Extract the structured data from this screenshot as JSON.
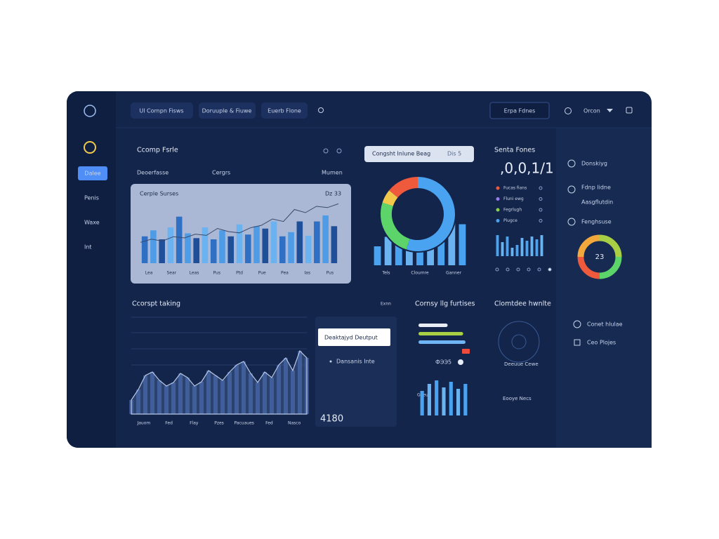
{
  "sidebar": {
    "items": [
      "Dalee",
      "Penis",
      "Waxe",
      "Int"
    ]
  },
  "topbar": {
    "tabs": [
      "Ul Cornpn Fisws",
      "Doruuple & Fiuwe",
      "Euerb Flone"
    ],
    "button": "Erpa Fdnes",
    "user": "Orcon"
  },
  "overview": {
    "title": "Ccomp Fsrle",
    "filters": [
      "Deoerfasse",
      "Cergrs",
      "Mumen"
    ],
    "chart": {
      "title": "Cerple Surses",
      "badge": "Dz 33",
      "bars": [
        45,
        55,
        40,
        60,
        78,
        50,
        42,
        60,
        40,
        55,
        45,
        65,
        48,
        62,
        58,
        70,
        45,
        52,
        70,
        46,
        70,
        80,
        62
      ],
      "line": [
        33,
        38,
        35,
        42,
        40,
        46,
        44,
        55,
        50,
        48,
        56,
        60,
        70,
        66,
        85,
        80,
        90,
        88,
        94
      ],
      "labels": [
        "Lea",
        "Sear",
        "Leas",
        "Pus",
        "Ptd",
        "Pue",
        "Pea",
        "Ias",
        "Pus"
      ]
    }
  },
  "donut_card": {
    "title": "Congsht Inlune Beag",
    "badge": "Dis 5",
    "segments": [
      {
        "value": 55,
        "color": "#4aa3f0"
      },
      {
        "value": 25,
        "color": "#5cd46a"
      },
      {
        "value": 6,
        "color": "#f2c84b"
      },
      {
        "value": 14,
        "color": "#ef5a3c"
      }
    ],
    "bars": [
      30,
      45,
      55,
      50,
      40,
      65,
      62,
      70,
      65
    ],
    "labels": [
      "Tels",
      "Cloumre",
      "Ganner"
    ]
  },
  "stats": {
    "title": "Senta Fones",
    "value": ",0,0,1/1",
    "legend": [
      {
        "name": "Fucas fians",
        "color": "#ef5a3c"
      },
      {
        "name": "Fluni ewg",
        "color": "#9b7cf0"
      },
      {
        "name": "Fegrlugh",
        "color": "#8ad04a"
      },
      {
        "name": "Piugce",
        "color": "#4aa3f0"
      }
    ],
    "bars": [
      30,
      20,
      28,
      12,
      16,
      26,
      22,
      28,
      24,
      30
    ]
  },
  "side": {
    "items": [
      "Donskiyg",
      "Fdnp lidne",
      "Aasgflutdin",
      "Fenghsuse"
    ],
    "gauge": "23",
    "links": [
      "Conet hlulae",
      "Ceo Plojes"
    ]
  },
  "trend": {
    "title": "Ccorspt taking",
    "action": "Exnn",
    "values": [
      20,
      35,
      55,
      60,
      48,
      40,
      45,
      58,
      52,
      40,
      46,
      62,
      55,
      48,
      60,
      70,
      75,
      58,
      45,
      60,
      52,
      70,
      80,
      62,
      90,
      80
    ],
    "labels": [
      "Jauom",
      "Fed",
      "Flay",
      "Pzes",
      "Pacuaues",
      "Fed",
      "Nasco"
    ]
  },
  "output": {
    "button": "Deaktajyd Deutput",
    "item": "Dansanis Inte",
    "value": "4180"
  },
  "features": {
    "title": "Cornsy llg furtises",
    "progress": [
      {
        "value": 62,
        "color": "#e8edf6"
      },
      {
        "value": 95,
        "color": "#a9cf45"
      },
      {
        "value": 100,
        "color": "#6fb4f5"
      }
    ],
    "value": "ФЭЭ5",
    "bars": [
      35,
      45,
      50,
      40,
      48,
      38,
      45
    ],
    "label": "Geeu"
  },
  "health": {
    "title": "Clomtdee hwnlte",
    "items": [
      "Deeuue Cewe",
      "Eooye Necs"
    ]
  }
}
